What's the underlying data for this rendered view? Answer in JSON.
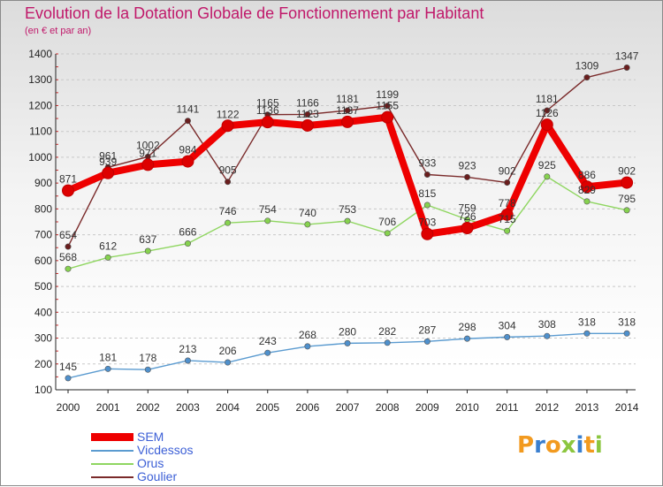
{
  "chart_data": {
    "type": "line",
    "title": "Evolution de la Dotation Globale de Fonctionnement par Habitant",
    "subtitle": "(en € et par an)",
    "xlabel": "",
    "ylabel": "",
    "ylim": [
      100,
      1400
    ],
    "yticks": [
      100,
      200,
      300,
      400,
      500,
      600,
      700,
      800,
      900,
      1000,
      1100,
      1200,
      1300,
      1400
    ],
    "categories": [
      "2000",
      "2001",
      "2002",
      "2003",
      "2004",
      "2005",
      "2006",
      "2007",
      "2008",
      "2009",
      "2010",
      "2011",
      "2012",
      "2013",
      "2014"
    ],
    "grid": "horizontal",
    "legend_position": "bottom-left",
    "series": [
      {
        "name": "SEM",
        "color": "#ee0000",
        "marker": "#dd0000",
        "values": [
          871,
          939,
          971,
          984,
          1122,
          1136,
          1123,
          1137,
          1155,
          703,
          726,
          778,
          1126,
          886,
          902
        ],
        "labels": [
          "871",
          "939",
          "971",
          "984",
          "1122",
          "1136",
          "1123",
          "1137",
          "1155",
          "703",
          "726",
          "778",
          "1126",
          "886",
          "902"
        ]
      },
      {
        "name": "Vicdessos",
        "color": "#5b9bd0",
        "marker": "#4f90cc",
        "values": [
          145,
          181,
          178,
          213,
          206,
          243,
          268,
          280,
          282,
          287,
          298,
          304,
          308,
          318,
          318
        ],
        "labels": [
          "145",
          "181",
          "178",
          "213",
          "206",
          "243",
          "268",
          "280",
          "282",
          "287",
          "298",
          "304",
          "308",
          "318",
          "318"
        ]
      },
      {
        "name": "Orus",
        "color": "#8fd660",
        "marker": "#86d24f",
        "values": [
          568,
          612,
          637,
          666,
          746,
          754,
          740,
          753,
          706,
          815,
          759,
          715,
          925,
          829,
          795
        ],
        "labels": [
          "568",
          "612",
          "637",
          "666",
          "746",
          "754",
          "740",
          "753",
          "706",
          "815",
          "759",
          "715",
          "925",
          "829",
          "795"
        ]
      },
      {
        "name": "Goulier",
        "color": "#7a2a2a",
        "marker": "#6a1e1e",
        "values": [
          654,
          961,
          1002,
          1141,
          905,
          1165,
          1166,
          1181,
          1199,
          933,
          923,
          902,
          1181,
          1309,
          1347
        ],
        "labels": [
          "654",
          "961",
          "1002",
          "1141",
          "905",
          "1165",
          "1166",
          "1181",
          "1199",
          "933",
          "923",
          "902",
          "1181",
          "1309",
          "1347"
        ]
      }
    ]
  },
  "legend": {
    "items": [
      {
        "label": "SEM",
        "color": "#ee0000"
      },
      {
        "label": "Vicdessos",
        "color": "#5b9bd0"
      },
      {
        "label": "Orus",
        "color": "#8fd660"
      },
      {
        "label": "Goulier",
        "color": "#7a2a2a"
      }
    ]
  },
  "logo": {
    "text": "Proxiti",
    "colors": [
      "#f29a1f",
      "#3a7fcf",
      "#f29a1f",
      "#8cc63f",
      "#3a7fcf",
      "#f29a1f",
      "#8cc63f"
    ]
  }
}
